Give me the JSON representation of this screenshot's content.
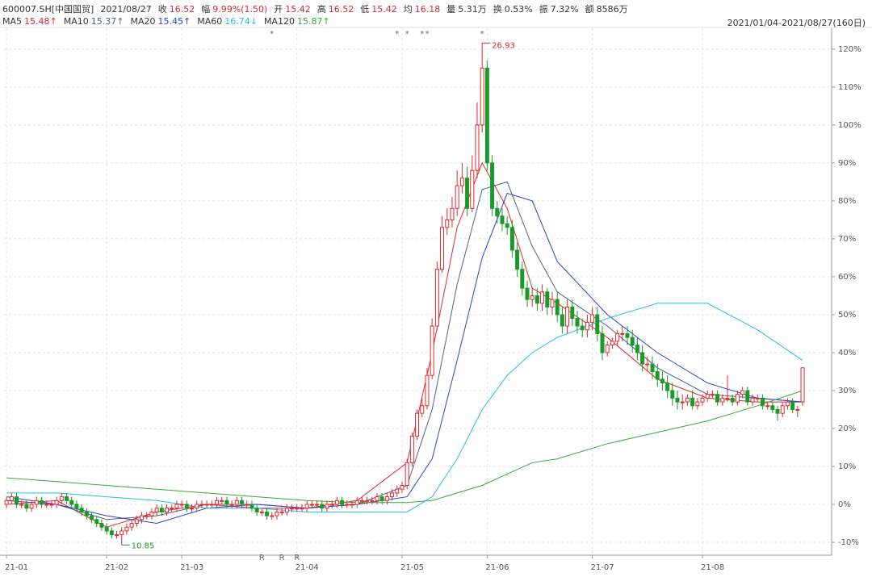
{
  "header": {
    "symbol": "600007.SH[中国国贸]",
    "date": "2021/08/27",
    "fields": [
      {
        "label": "收",
        "value": "16.52",
        "color": "#e0292e"
      },
      {
        "label": "幅",
        "value": "9.99%(1.50)",
        "color": "#e0292e"
      },
      {
        "label": "开",
        "value": "15.42",
        "color": "#e0292e"
      },
      {
        "label": "高",
        "value": "16.52",
        "color": "#e0292e"
      },
      {
        "label": "低",
        "value": "15.42",
        "color": "#e0292e"
      },
      {
        "label": "均",
        "value": "16.18",
        "color": "#e0292e"
      },
      {
        "label": "量",
        "value": "5.31万",
        "color": "#333333"
      },
      {
        "label": "换",
        "value": "0.53%",
        "color": "#333333"
      },
      {
        "label": "振",
        "value": "7.32%",
        "color": "#333333"
      },
      {
        "label": "额",
        "value": "8586万",
        "color": "#333333"
      }
    ],
    "range": "2021/01/04-2021/08/27(160日)"
  },
  "chart_data": {
    "type": "candlestick",
    "open": [
      0,
      1,
      2,
      0,
      0,
      -1,
      0,
      1,
      0,
      0,
      0,
      1,
      2,
      1,
      0,
      -1,
      -2,
      -3,
      -4,
      -5,
      -6,
      -7,
      -8,
      -8,
      -7,
      -6,
      -5,
      -4,
      -3,
      -3,
      -2,
      -1,
      -2,
      -1,
      -1,
      0,
      0,
      -1,
      -1,
      0,
      0,
      0,
      0,
      1,
      1,
      0,
      0,
      1,
      0,
      0,
      -1,
      -2,
      -2,
      -3,
      -3,
      -2,
      -2,
      -1,
      -1,
      -1,
      -1,
      0,
      0,
      0,
      -1,
      0,
      0,
      1,
      0,
      0,
      0,
      1,
      1,
      1,
      1,
      2,
      1,
      2,
      3,
      4,
      5,
      11,
      18,
      24,
      26,
      34,
      47,
      62,
      73,
      75,
      78,
      84,
      86,
      78,
      88,
      100,
      115,
      90,
      78,
      76,
      74,
      73,
      67,
      62,
      57,
      54,
      55,
      53,
      56,
      52,
      54,
      50,
      47,
      52,
      49,
      47,
      46,
      48,
      50,
      45,
      40,
      42,
      43,
      45,
      45,
      44,
      42,
      40,
      37,
      37,
      35,
      33,
      32,
      30,
      28,
      27,
      27,
      28,
      26,
      27,
      28,
      29,
      29,
      27,
      28,
      28,
      27,
      29,
      30,
      27,
      28,
      28,
      26,
      26,
      25,
      24,
      26,
      27,
      25,
      27
    ],
    "high": [
      2,
      3,
      3,
      1,
      1,
      1,
      2,
      2,
      1,
      1,
      2,
      3,
      3,
      2,
      1,
      0,
      -1,
      -2,
      -3,
      -4,
      -5,
      -6,
      -7,
      -6,
      -5,
      -4,
      -3,
      -2,
      -2,
      -1,
      0,
      0,
      0,
      0,
      1,
      1,
      1,
      0,
      1,
      1,
      1,
      1,
      2,
      2,
      2,
      1,
      2,
      2,
      1,
      1,
      0,
      -1,
      -1,
      -2,
      -1,
      -1,
      0,
      0,
      0,
      0,
      1,
      1,
      1,
      1,
      1,
      1,
      2,
      2,
      1,
      1,
      2,
      2,
      2,
      2,
      3,
      3,
      3,
      4,
      5,
      6,
      12,
      19,
      25,
      28,
      36,
      49,
      64,
      76,
      78,
      81,
      88,
      90,
      89,
      92,
      106,
      121.6,
      117,
      92,
      80,
      78,
      76,
      75,
      69,
      64,
      59,
      57,
      57,
      58,
      57,
      56,
      56,
      52,
      54,
      54,
      51,
      49,
      50,
      52,
      52,
      47,
      43,
      44,
      46,
      47,
      47,
      46,
      44,
      42,
      39,
      39,
      37,
      35,
      34,
      32,
      30,
      29,
      29,
      30,
      28,
      29,
      30,
      30,
      30,
      29,
      34,
      29,
      30,
      31,
      31,
      29,
      29,
      29,
      27,
      27,
      26,
      27,
      28,
      28,
      26,
      36
    ],
    "low": [
      -1,
      0,
      -1,
      -1,
      -2,
      -2,
      -1,
      -1,
      -1,
      -1,
      -1,
      0,
      0,
      -1,
      -2,
      -3,
      -4,
      -5,
      -6,
      -7,
      -8,
      -9,
      -9,
      -10.7,
      -8,
      -7,
      -6,
      -5,
      -4,
      -4,
      -3,
      -3,
      -3,
      -2,
      -2,
      -1,
      -2,
      -2,
      -2,
      -1,
      -1,
      -1,
      -1,
      0,
      -1,
      -1,
      -1,
      -1,
      -1,
      -2,
      -3,
      -3,
      -4,
      -4,
      -4,
      -3,
      -3,
      -2,
      -2,
      -2,
      -2,
      -1,
      -1,
      -2,
      -2,
      -1,
      -1,
      -1,
      -1,
      -1,
      -1,
      0,
      0,
      0,
      0,
      0,
      0,
      1,
      2,
      3,
      4,
      10,
      17,
      23,
      25,
      33,
      46,
      61,
      71,
      73,
      76,
      82,
      76,
      77,
      86,
      98,
      88,
      76,
      74,
      72,
      71,
      65,
      60,
      55,
      52,
      52,
      51,
      51,
      50,
      50,
      48,
      45,
      45,
      47,
      45,
      44,
      44,
      46,
      43,
      38,
      39,
      41,
      42,
      43,
      42,
      40,
      38,
      35,
      35,
      33,
      31,
      30,
      28,
      26,
      25,
      25,
      26,
      25,
      25,
      26,
      27,
      28,
      26,
      26,
      27,
      26,
      26,
      28,
      26,
      26,
      27,
      25,
      25,
      24,
      22,
      23,
      25,
      24,
      23,
      26
    ],
    "close": [
      1,
      2,
      0,
      0,
      -1,
      0,
      1,
      0,
      0,
      0,
      1,
      2,
      1,
      0,
      -1,
      -2,
      -3,
      -4,
      -5,
      -6,
      -7,
      -8,
      -8,
      -7,
      -6,
      -5,
      -4,
      -3,
      -3,
      -2,
      -1,
      -2,
      -1,
      -1,
      0,
      0,
      -1,
      -1,
      0,
      0,
      0,
      0,
      1,
      1,
      0,
      0,
      1,
      0,
      0,
      -1,
      -2,
      -2,
      -3,
      -3,
      -2,
      -2,
      -1,
      -1,
      -1,
      -1,
      0,
      0,
      0,
      -1,
      0,
      0,
      1,
      0,
      0,
      0,
      1,
      1,
      1,
      1,
      2,
      1,
      2,
      3,
      4,
      5,
      11,
      18,
      24,
      26,
      34,
      47,
      62,
      73,
      75,
      78,
      84,
      86,
      78,
      88,
      100,
      115,
      90,
      78,
      76,
      74,
      73,
      67,
      62,
      57,
      54,
      55,
      53,
      56,
      52,
      54,
      50,
      47,
      52,
      49,
      47,
      46,
      48,
      50,
      45,
      40,
      42,
      43,
      45,
      45,
      44,
      42,
      40,
      37,
      37,
      35,
      33,
      32,
      30,
      28,
      27,
      27,
      28,
      26,
      27,
      28,
      29,
      29,
      27,
      28,
      28,
      27,
      29,
      30,
      27,
      28,
      28,
      26,
      26,
      25,
      24,
      26,
      27,
      25,
      25,
      36
    ],
    "up_color": "#e0292e",
    "down_color": "#1a9a2a",
    "ma_x": [
      0,
      10,
      20,
      30,
      40,
      50,
      60,
      70,
      80,
      85,
      90,
      95,
      100,
      105,
      110,
      120,
      130,
      140,
      150,
      159
    ],
    "series": [
      {
        "name": "MA5",
        "value_label": "15.48↑",
        "color": "#e0292e",
        "values": [
          0,
          1,
          -6,
          -2,
          0,
          -1,
          -1,
          1,
          11,
          40,
          73,
          90,
          78,
          57,
          53,
          44,
          33,
          28,
          27,
          27
        ]
      },
      {
        "name": "MA10",
        "value_label": "15.37↑",
        "color": "#50608a",
        "values": [
          1,
          0,
          -4,
          -3,
          0,
          0,
          -1,
          0,
          5,
          25,
          58,
          83,
          85,
          68,
          56,
          47,
          36,
          29,
          28,
          27
        ]
      },
      {
        "name": "MA20",
        "value_label": "15.45↑",
        "color": "#2a3fd8",
        "values": [
          2,
          0,
          -3,
          -5,
          -1,
          0,
          -1,
          0,
          2,
          12,
          38,
          65,
          82,
          80,
          64,
          50,
          40,
          32,
          28,
          27
        ]
      },
      {
        "name": "MA60",
        "value_label": "16.74↓",
        "color": "#22c0e0",
        "values": [
          3,
          3,
          2,
          1,
          -1,
          -1,
          -2,
          -2,
          -2,
          2,
          12,
          25,
          34,
          40,
          44,
          49,
          53,
          53,
          46,
          38
        ]
      },
      {
        "name": "MA120",
        "value_label": "15.87↑",
        "color": "#38a838",
        "values": [
          7,
          6,
          5,
          4,
          3,
          2,
          1,
          0.5,
          0.5,
          1,
          3,
          5,
          8,
          11,
          12,
          16,
          19,
          22,
          26,
          30
        ]
      }
    ],
    "annotations": [
      {
        "label": "26.93",
        "index": 95,
        "value": 121.6
      },
      {
        "label": "10.85",
        "index": 23,
        "value": -10.7
      }
    ],
    "star_label": "*",
    "star_marks": [
      53,
      78,
      80,
      83,
      84,
      95
    ],
    "r_label": "R",
    "r_marks": [
      51,
      55,
      58
    ],
    "xlim": [
      -0.5,
      164.8
    ],
    "ylim": [
      -13.4,
      125.5
    ],
    "xticks": [
      {
        "value": 0,
        "label": "21-01"
      },
      {
        "value": 20,
        "label": "21-02"
      },
      {
        "value": 35,
        "label": "21-03"
      },
      {
        "value": 58,
        "label": "21-04"
      },
      {
        "value": 79,
        "label": "21-05"
      },
      {
        "value": 96,
        "label": "21-06"
      },
      {
        "value": 117,
        "label": "21-07"
      },
      {
        "value": 139,
        "label": "21-08"
      }
    ],
    "yticks": [
      {
        "value": 120,
        "label": "120%"
      },
      {
        "value": 110,
        "label": "110%"
      },
      {
        "value": 100,
        "label": "100%"
      },
      {
        "value": 90,
        "label": "90%"
      },
      {
        "value": 80,
        "label": "80%"
      },
      {
        "value": 70,
        "label": "70%"
      },
      {
        "value": 60,
        "label": "60%"
      },
      {
        "value": 50,
        "label": "50%"
      },
      {
        "value": 40,
        "label": "40%"
      },
      {
        "value": 30,
        "label": "30%"
      },
      {
        "value": 20,
        "label": "20%"
      },
      {
        "value": 10,
        "label": "10%"
      },
      {
        "value": 0,
        "label": "0%"
      },
      {
        "value": -10,
        "label": "-10%"
      }
    ],
    "grid": true
  }
}
